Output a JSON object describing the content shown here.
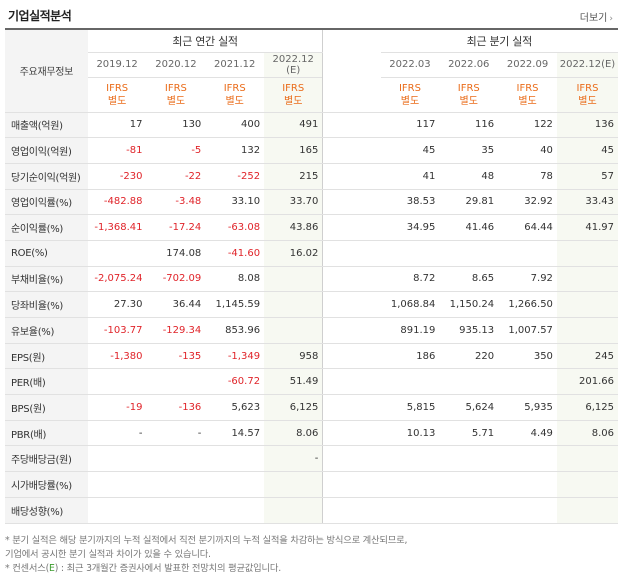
{
  "header": {
    "title": "기업실적분석",
    "more": "더보기"
  },
  "table": {
    "corner": "주요재무정보",
    "annual_label": "최근 연간 실적",
    "quarter_label": "최근 분기 실적",
    "annual_periods": [
      {
        "l1": "2019.12",
        "l2": ""
      },
      {
        "l1": "2020.12",
        "l2": ""
      },
      {
        "l1": "2021.12",
        "l2": ""
      },
      {
        "l1": "2022.12",
        "l2": "(E)"
      }
    ],
    "quarter_periods": [
      {
        "l1": "2022.03",
        "l2": ""
      },
      {
        "l1": "2022.06",
        "l2": ""
      },
      {
        "l1": "2022.09",
        "l2": ""
      },
      {
        "l1": "2022.12",
        "l2": "(E)"
      }
    ],
    "ifrs": {
      "top": "IFRS",
      "bottom": "별도"
    },
    "rows": [
      {
        "label": "매출액(억원)",
        "a": [
          "17",
          "130",
          "400",
          "491"
        ],
        "q": [
          "117",
          "116",
          "122",
          "136"
        ]
      },
      {
        "label": "영업이익(억원)",
        "a": [
          "-81",
          "-5",
          "132",
          "165"
        ],
        "q": [
          "45",
          "35",
          "40",
          "45"
        ]
      },
      {
        "label": "당기순이익(억원)",
        "a": [
          "-230",
          "-22",
          "-252",
          "215"
        ],
        "q": [
          "41",
          "48",
          "78",
          "57"
        ]
      },
      {
        "label": "영업이익률(%)",
        "a": [
          "-482.88",
          "-3.48",
          "33.10",
          "33.70"
        ],
        "q": [
          "38.53",
          "29.81",
          "32.92",
          "33.43"
        ]
      },
      {
        "label": "순이익률(%)",
        "a": [
          "-1,368.41",
          "-17.24",
          "-63.08",
          "43.86"
        ],
        "q": [
          "34.95",
          "41.46",
          "64.44",
          "41.97"
        ]
      },
      {
        "label": "ROE(%)",
        "a": [
          "",
          "174.08",
          "-41.60",
          "16.02"
        ],
        "q": [
          "",
          "",
          "",
          ""
        ]
      },
      {
        "label": "부채비율(%)",
        "a": [
          "-2,075.24",
          "-702.09",
          "8.08",
          ""
        ],
        "q": [
          "8.72",
          "8.65",
          "7.92",
          ""
        ]
      },
      {
        "label": "당좌비율(%)",
        "a": [
          "27.30",
          "36.44",
          "1,145.59",
          ""
        ],
        "q": [
          "1,068.84",
          "1,150.24",
          "1,266.50",
          ""
        ]
      },
      {
        "label": "유보율(%)",
        "a": [
          "-103.77",
          "-129.34",
          "853.96",
          ""
        ],
        "q": [
          "891.19",
          "935.13",
          "1,007.57",
          ""
        ]
      },
      {
        "label": "EPS(원)",
        "a": [
          "-1,380",
          "-135",
          "-1,349",
          "958"
        ],
        "q": [
          "186",
          "220",
          "350",
          "245"
        ]
      },
      {
        "label": "PER(배)",
        "a": [
          "",
          "",
          "-60.72",
          "51.49"
        ],
        "q": [
          "",
          "",
          "",
          "201.66"
        ]
      },
      {
        "label": "BPS(원)",
        "a": [
          "-19",
          "-136",
          "5,623",
          "6,125"
        ],
        "q": [
          "5,815",
          "5,624",
          "5,935",
          "6,125"
        ]
      },
      {
        "label": "PBR(배)",
        "a": [
          "-",
          "-",
          "14.57",
          "8.06"
        ],
        "q": [
          "10.13",
          "5.71",
          "4.49",
          "8.06"
        ]
      },
      {
        "label": "주당배당금(원)",
        "a": [
          "",
          "",
          "",
          "-"
        ],
        "q": [
          "",
          "",
          "",
          ""
        ]
      },
      {
        "label": "시가배당률(%)",
        "a": [
          "",
          "",
          "",
          ""
        ],
        "q": [
          "",
          "",
          "",
          ""
        ]
      },
      {
        "label": "배당성향(%)",
        "a": [
          "",
          "",
          "",
          ""
        ],
        "q": [
          "",
          "",
          "",
          ""
        ]
      }
    ]
  },
  "notes": {
    "line1": "* 분기 실적은 해당 분기까지의 누적 실적에서 직전 분기까지의 누적 실적을 차감하는 방식으로 계산되므로,",
    "line2": "  기업에서 공시한 분기 실적과 차이가 있을 수 있습니다.",
    "line3_a": "* 컨센서스(",
    "line3_e": "E",
    "line3_b": ") : 최근 3개월간 증권사에서 발표한 전망치의 평균값입니다."
  },
  "colors": {
    "negative": "#e0242a",
    "ifrs": "#ea6c1a",
    "estimate_bg": "#f7f9f2",
    "label_bg": "#f4f4f4"
  }
}
